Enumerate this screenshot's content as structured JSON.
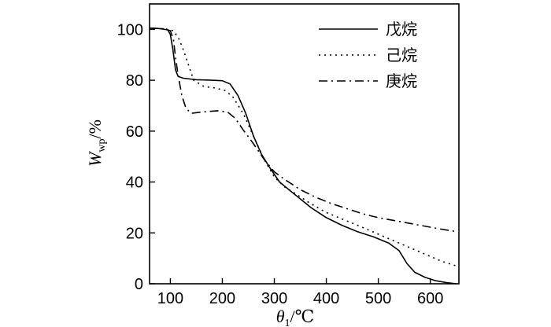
{
  "chart_data": {
    "type": "line",
    "title": "",
    "xlabel": {
      "main": "θ",
      "sub": "1",
      "unit": "/℃"
    },
    "ylabel": {
      "main": "W",
      "sub": "wp",
      "unit": "/%"
    },
    "xlim": [
      60,
      655
    ],
    "ylim": [
      0,
      110
    ],
    "x_ticks": [
      100,
      200,
      300,
      400,
      500,
      600
    ],
    "y_ticks": [
      0,
      20,
      40,
      60,
      80,
      100
    ],
    "grid": false,
    "legend_position": "top-right",
    "series": [
      {
        "name": "戊烷",
        "style": "solid",
        "points": [
          [
            60,
            100.5
          ],
          [
            80,
            100.3
          ],
          [
            95,
            99.8
          ],
          [
            100,
            98
          ],
          [
            105,
            92
          ],
          [
            110,
            84
          ],
          [
            115,
            81.5
          ],
          [
            125,
            80.8
          ],
          [
            150,
            80.2
          ],
          [
            180,
            80
          ],
          [
            200,
            79.8
          ],
          [
            215,
            78.5
          ],
          [
            230,
            74
          ],
          [
            245,
            67
          ],
          [
            260,
            58
          ],
          [
            275,
            51
          ],
          [
            290,
            46
          ],
          [
            310,
            40
          ],
          [
            340,
            35
          ],
          [
            370,
            30
          ],
          [
            400,
            26
          ],
          [
            430,
            23
          ],
          [
            460,
            20.5
          ],
          [
            490,
            18.5
          ],
          [
            520,
            16
          ],
          [
            540,
            13
          ],
          [
            555,
            8
          ],
          [
            570,
            4.5
          ],
          [
            590,
            2.5
          ],
          [
            610,
            1.2
          ],
          [
            630,
            0.5
          ],
          [
            650,
            0
          ]
        ]
      },
      {
        "name": "己烷",
        "style": "dotted",
        "points": [
          [
            60,
            100.5
          ],
          [
            90,
            100.2
          ],
          [
            105,
            99.5
          ],
          [
            115,
            97
          ],
          [
            125,
            92
          ],
          [
            135,
            86
          ],
          [
            145,
            80
          ],
          [
            165,
            77.5
          ],
          [
            185,
            77
          ],
          [
            205,
            76
          ],
          [
            220,
            73.5
          ],
          [
            240,
            67
          ],
          [
            260,
            58
          ],
          [
            280,
            49
          ],
          [
            300,
            42
          ],
          [
            320,
            38
          ],
          [
            340,
            35.5
          ],
          [
            370,
            31.5
          ],
          [
            400,
            28
          ],
          [
            430,
            25.5
          ],
          [
            460,
            23
          ],
          [
            500,
            19.5
          ],
          [
            540,
            16
          ],
          [
            580,
            12.5
          ],
          [
            620,
            9
          ],
          [
            650,
            7
          ]
        ]
      },
      {
        "name": "庚烷",
        "style": "dashdot",
        "points": [
          [
            60,
            100.5
          ],
          [
            85,
            100.3
          ],
          [
            100,
            99.5
          ],
          [
            106,
            96
          ],
          [
            110,
            89
          ],
          [
            115,
            82
          ],
          [
            122,
            74
          ],
          [
            130,
            69
          ],
          [
            140,
            67
          ],
          [
            160,
            67.5
          ],
          [
            190,
            68
          ],
          [
            210,
            67.5
          ],
          [
            225,
            65
          ],
          [
            240,
            60.5
          ],
          [
            260,
            55
          ],
          [
            280,
            49
          ],
          [
            300,
            44
          ],
          [
            320,
            41
          ],
          [
            350,
            37
          ],
          [
            380,
            34
          ],
          [
            410,
            31.5
          ],
          [
            440,
            29.5
          ],
          [
            470,
            27.5
          ],
          [
            500,
            26
          ],
          [
            540,
            24.5
          ],
          [
            580,
            23
          ],
          [
            620,
            21.5
          ],
          [
            650,
            20.5
          ]
        ]
      }
    ]
  }
}
